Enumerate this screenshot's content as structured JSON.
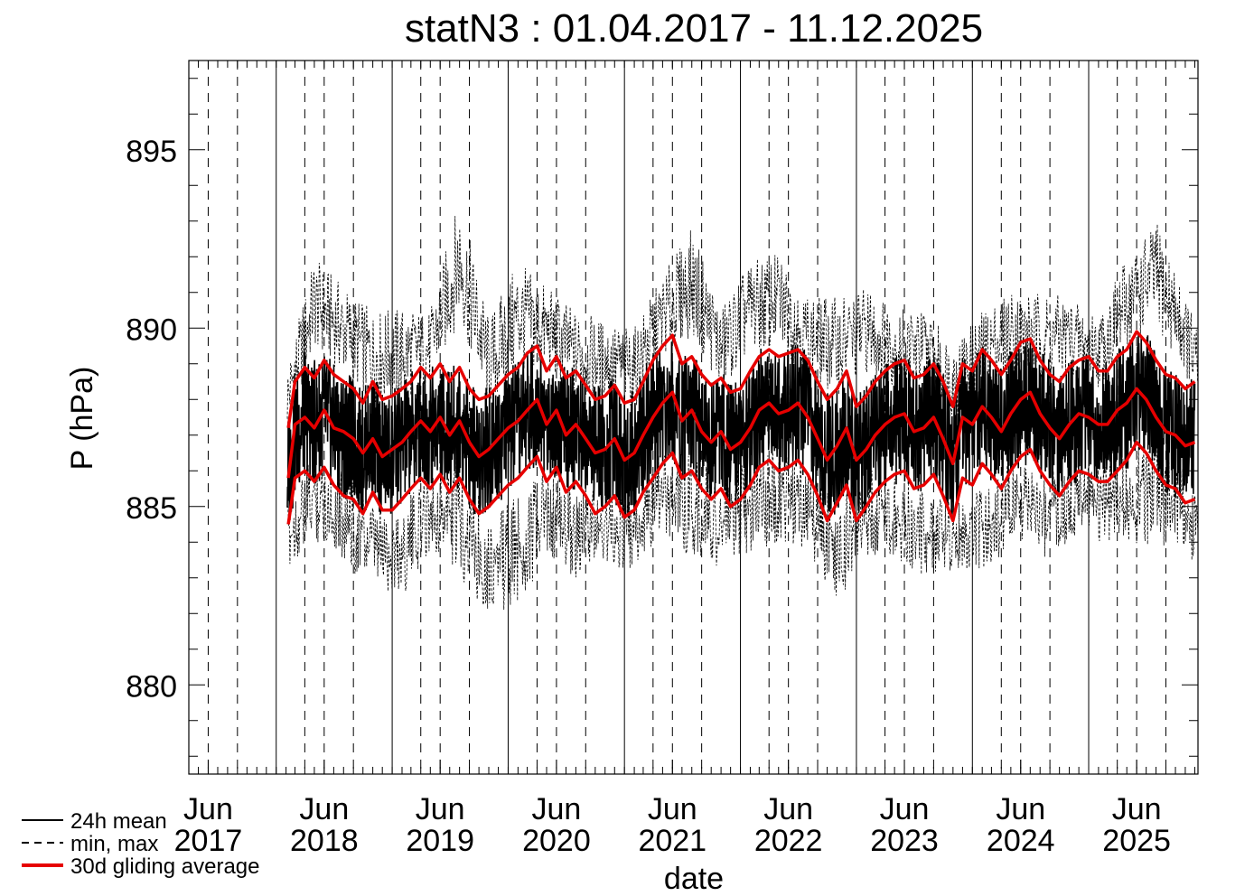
{
  "chart_data": {
    "type": "line",
    "title": "statN3 : 01.04.2017 - 11.12.2025",
    "xlabel": "date",
    "ylabel": "P (hPa)",
    "x_range": [
      "2017-04-01",
      "2025-12-11"
    ],
    "ylim": [
      877.5,
      897.5
    ],
    "yticks": [
      880,
      885,
      890,
      895
    ],
    "ytick_labels": [
      "880",
      "885",
      "890",
      "895"
    ],
    "xticks": [
      {
        "date": "2017-06-01",
        "label": [
          "Jun",
          "2017"
        ]
      },
      {
        "date": "2018-06-01",
        "label": [
          "Jun",
          "2018"
        ]
      },
      {
        "date": "2019-06-01",
        "label": [
          "Jun",
          "2019"
        ]
      },
      {
        "date": "2020-06-01",
        "label": [
          "Jun",
          "2020"
        ]
      },
      {
        "date": "2021-06-01",
        "label": [
          "Jun",
          "2021"
        ]
      },
      {
        "date": "2022-06-01",
        "label": [
          "Jun",
          "2022"
        ]
      },
      {
        "date": "2023-06-01",
        "label": [
          "Jun",
          "2023"
        ]
      },
      {
        "date": "2024-06-01",
        "label": [
          "Jun",
          "2024"
        ]
      },
      {
        "date": "2025-06-01",
        "label": [
          "Jun",
          "2025"
        ]
      }
    ],
    "year_boundaries": [
      "2018-01-01",
      "2019-01-01",
      "2020-01-01",
      "2021-01-01",
      "2022-01-01",
      "2023-01-01",
      "2024-01-01",
      "2025-01-01"
    ],
    "legend_position": "bottom-left",
    "series": [
      {
        "name": "24h mean",
        "style": "solid",
        "color": "#000000",
        "dates": [
          "2018-02-05",
          "2018-03-01",
          "2018-04-01",
          "2018-05-01",
          "2018-06-01",
          "2018-07-01",
          "2018-08-01",
          "2018-09-01",
          "2018-10-01",
          "2018-11-01",
          "2018-12-01",
          "2019-01-01",
          "2019-02-01",
          "2019-03-01",
          "2019-04-01",
          "2019-05-01",
          "2019-06-01",
          "2019-07-01",
          "2019-08-01",
          "2019-09-01",
          "2019-10-01",
          "2019-11-01",
          "2019-12-01",
          "2020-01-01",
          "2020-02-01",
          "2020-03-01",
          "2020-04-01",
          "2020-05-01",
          "2020-06-01",
          "2020-07-01",
          "2020-08-01",
          "2020-09-01",
          "2020-10-01",
          "2020-11-01",
          "2020-12-01",
          "2021-01-01",
          "2021-02-01",
          "2021-03-01",
          "2021-04-01",
          "2021-05-01",
          "2021-06-01",
          "2021-07-01",
          "2021-08-01",
          "2021-09-01",
          "2021-10-01",
          "2021-11-01",
          "2021-12-01",
          "2022-01-01",
          "2022-02-01",
          "2022-03-01",
          "2022-04-01",
          "2022-05-01",
          "2022-06-01",
          "2022-07-01",
          "2022-08-01",
          "2022-09-01",
          "2022-10-01",
          "2022-11-01",
          "2022-12-01",
          "2023-01-01",
          "2023-02-01",
          "2023-03-01",
          "2023-04-01",
          "2023-05-01",
          "2023-06-01",
          "2023-07-01",
          "2023-08-01",
          "2023-09-01",
          "2023-10-01",
          "2023-11-01",
          "2023-12-01",
          "2024-01-01",
          "2024-02-01",
          "2024-03-01",
          "2024-04-01",
          "2024-05-01",
          "2024-06-01",
          "2024-07-01",
          "2024-08-01",
          "2024-09-01",
          "2024-10-01",
          "2024-11-01",
          "2024-12-01",
          "2025-01-01",
          "2025-02-01",
          "2025-03-01",
          "2025-04-01",
          "2025-05-01",
          "2025-06-01",
          "2025-07-01",
          "2025-08-01",
          "2025-09-01",
          "2025-10-01",
          "2025-11-01",
          "2025-12-01"
        ],
        "values": [
          885.8,
          887.0,
          887.6,
          887.3,
          887.6,
          887.2,
          887.0,
          886.8,
          886.5,
          887.0,
          886.4,
          886.5,
          886.8,
          887.0,
          887.3,
          887.2,
          887.4,
          887.1,
          887.3,
          886.8,
          886.4,
          886.7,
          886.9,
          887.1,
          887.3,
          887.7,
          887.9,
          887.3,
          887.6,
          887.1,
          887.2,
          886.9,
          886.6,
          886.6,
          886.9,
          886.4,
          886.5,
          887.1,
          887.5,
          887.8,
          887.9,
          887.4,
          887.6,
          887.2,
          886.9,
          887.1,
          886.7,
          886.8,
          887.2,
          887.7,
          887.8,
          887.6,
          887.7,
          887.8,
          887.5,
          886.9,
          886.4,
          886.6,
          887.1,
          886.4,
          886.6,
          886.9,
          887.2,
          887.4,
          887.5,
          887.2,
          887.2,
          887.5,
          887.0,
          886.3,
          887.4,
          887.3,
          887.7,
          887.5,
          887.2,
          887.6,
          887.9,
          888.0,
          887.6,
          887.3,
          887.0,
          887.3,
          887.5,
          887.6,
          887.3,
          887.3,
          887.6,
          887.8,
          888.2,
          888.1,
          887.6,
          887.2,
          887.0,
          886.8,
          886.8
        ]
      },
      {
        "name": "min, max",
        "style": "dashed",
        "color": "#000000",
        "dates": [
          "2018-02-05",
          "2018-05-01",
          "2018-08-01",
          "2018-11-01",
          "2019-02-01",
          "2019-05-01",
          "2019-08-01",
          "2019-11-01",
          "2020-02-01",
          "2020-05-01",
          "2020-08-01",
          "2020-11-01",
          "2021-02-01",
          "2021-05-01",
          "2021-08-01",
          "2021-11-01",
          "2022-02-01",
          "2022-05-01",
          "2022-08-01",
          "2022-11-01",
          "2023-02-01",
          "2023-05-01",
          "2023-08-01",
          "2023-11-01",
          "2024-02-01",
          "2024-05-01",
          "2024-08-01",
          "2024-11-01",
          "2025-02-01",
          "2025-05-01",
          "2025-08-01",
          "2025-11-01",
          "2025-12-10"
        ],
        "min": [
          883.2,
          884.0,
          883.5,
          882.5,
          882.4,
          883.8,
          883.0,
          882.0,
          882.2,
          883.5,
          883.0,
          883.4,
          883.0,
          884.3,
          883.5,
          883.3,
          883.7,
          884.0,
          883.8,
          882.3,
          883.6,
          883.6,
          883.0,
          883.2,
          883.1,
          883.9,
          883.5,
          884.0,
          884.0,
          884.0,
          883.9,
          883.9,
          883.0
        ],
        "max": [
          889.0,
          892.0,
          891.2,
          890.5,
          890.6,
          890.5,
          893.7,
          890.3,
          891.9,
          891.2,
          890.5,
          890.2,
          890.0,
          891.5,
          892.8,
          890.6,
          891.9,
          892.1,
          890.9,
          890.9,
          891.2,
          890.6,
          890.6,
          889.6,
          890.5,
          891.1,
          891.0,
          890.9,
          890.4,
          892.0,
          893.0,
          891.0,
          890.0
        ]
      },
      {
        "name": "30d gliding average",
        "style": "solid-thick",
        "color": "#e60000",
        "dates": [
          "2018-02-08",
          "2018-03-01",
          "2018-04-01",
          "2018-05-01",
          "2018-06-01",
          "2018-07-01",
          "2018-08-01",
          "2018-09-01",
          "2018-10-01",
          "2018-11-01",
          "2018-12-01",
          "2019-01-01",
          "2019-02-01",
          "2019-03-01",
          "2019-04-01",
          "2019-05-01",
          "2019-06-01",
          "2019-07-01",
          "2019-08-01",
          "2019-09-01",
          "2019-10-01",
          "2019-11-01",
          "2019-12-01",
          "2020-01-01",
          "2020-02-01",
          "2020-03-01",
          "2020-04-01",
          "2020-05-01",
          "2020-06-01",
          "2020-07-01",
          "2020-08-01",
          "2020-09-01",
          "2020-10-01",
          "2020-11-01",
          "2020-12-01",
          "2021-01-01",
          "2021-02-01",
          "2021-03-01",
          "2021-04-01",
          "2021-05-01",
          "2021-06-01",
          "2021-07-01",
          "2021-08-01",
          "2021-09-01",
          "2021-10-01",
          "2021-11-01",
          "2021-12-01",
          "2022-01-01",
          "2022-02-01",
          "2022-03-01",
          "2022-04-01",
          "2022-05-01",
          "2022-06-01",
          "2022-07-01",
          "2022-08-01",
          "2022-09-01",
          "2022-10-01",
          "2022-11-01",
          "2022-12-01",
          "2023-01-01",
          "2023-02-01",
          "2023-03-01",
          "2023-04-01",
          "2023-05-01",
          "2023-06-01",
          "2023-07-01",
          "2023-08-01",
          "2023-09-01",
          "2023-10-01",
          "2023-11-01",
          "2023-12-01",
          "2024-01-01",
          "2024-02-01",
          "2024-03-01",
          "2024-04-01",
          "2024-05-01",
          "2024-06-01",
          "2024-07-01",
          "2024-08-01",
          "2024-09-01",
          "2024-10-01",
          "2024-11-01",
          "2024-12-01",
          "2025-01-01",
          "2025-02-01",
          "2025-03-01",
          "2025-04-01",
          "2025-05-01",
          "2025-06-01",
          "2025-07-01",
          "2025-08-01",
          "2025-09-01",
          "2025-10-01",
          "2025-11-01",
          "2025-12-01"
        ],
        "mean": [
          885.8,
          887.3,
          887.5,
          887.2,
          887.7,
          887.2,
          887.1,
          886.9,
          886.5,
          886.9,
          886.4,
          886.6,
          886.8,
          887.1,
          887.4,
          887.1,
          887.5,
          887.0,
          887.4,
          886.8,
          886.4,
          886.6,
          886.9,
          887.2,
          887.4,
          887.7,
          888.0,
          887.3,
          887.7,
          887.0,
          887.3,
          886.9,
          886.5,
          886.6,
          886.9,
          886.3,
          886.5,
          887.0,
          887.5,
          887.9,
          888.2,
          887.4,
          887.7,
          887.1,
          886.8,
          887.1,
          886.6,
          886.8,
          887.2,
          887.7,
          887.9,
          887.6,
          887.7,
          887.9,
          887.5,
          886.9,
          886.3,
          886.7,
          887.2,
          886.3,
          886.6,
          887.0,
          887.3,
          887.5,
          887.6,
          887.1,
          887.2,
          887.5,
          886.9,
          886.2,
          887.5,
          887.3,
          887.8,
          887.5,
          887.1,
          887.6,
          888.0,
          888.2,
          887.6,
          887.2,
          886.9,
          887.3,
          887.6,
          887.5,
          887.3,
          887.3,
          887.7,
          887.9,
          888.3,
          888.0,
          887.5,
          887.1,
          887.0,
          886.7,
          886.8
        ],
        "upper": [
          887.2,
          888.5,
          888.9,
          888.6,
          889.1,
          888.7,
          888.5,
          888.3,
          887.9,
          888.5,
          888.0,
          888.1,
          888.3,
          888.5,
          888.9,
          888.6,
          889.0,
          888.5,
          888.9,
          888.3,
          888.0,
          888.1,
          888.4,
          888.7,
          888.9,
          889.3,
          889.5,
          888.8,
          889.2,
          888.6,
          888.8,
          888.4,
          888.0,
          888.1,
          888.4,
          887.9,
          888.0,
          888.5,
          889.1,
          889.5,
          889.8,
          889.0,
          889.2,
          888.7,
          888.4,
          888.6,
          888.2,
          888.3,
          888.8,
          889.2,
          889.4,
          889.2,
          889.3,
          889.4,
          889.1,
          888.5,
          888.0,
          888.3,
          888.8,
          887.8,
          888.1,
          888.5,
          888.8,
          889.0,
          889.1,
          888.6,
          888.7,
          889.0,
          888.5,
          887.8,
          889.0,
          888.8,
          889.4,
          889.1,
          888.7,
          889.1,
          889.6,
          889.7,
          889.1,
          888.7,
          888.5,
          888.9,
          889.1,
          889.2,
          888.8,
          888.8,
          889.2,
          889.4,
          889.9,
          889.6,
          889.1,
          888.7,
          888.6,
          888.3,
          888.5
        ],
        "lower": [
          884.5,
          885.8,
          886.0,
          885.7,
          886.1,
          885.6,
          885.3,
          885.2,
          884.8,
          885.4,
          884.9,
          884.9,
          885.2,
          885.5,
          885.8,
          885.5,
          885.9,
          885.4,
          885.8,
          885.2,
          884.8,
          885.0,
          885.3,
          885.6,
          885.8,
          886.1,
          886.4,
          885.7,
          886.1,
          885.4,
          885.7,
          885.3,
          884.8,
          885.0,
          885.3,
          884.7,
          884.9,
          885.4,
          885.8,
          886.2,
          886.5,
          885.8,
          886.0,
          885.5,
          885.2,
          885.5,
          885.0,
          885.2,
          885.6,
          886.1,
          886.3,
          886.0,
          886.1,
          886.3,
          885.9,
          885.3,
          884.6,
          885.1,
          885.6,
          884.6,
          885.0,
          885.4,
          885.7,
          885.9,
          886.0,
          885.5,
          885.6,
          885.9,
          885.3,
          884.6,
          885.8,
          885.6,
          886.2,
          885.9,
          885.5,
          886.0,
          886.4,
          886.6,
          886.0,
          885.6,
          885.3,
          885.7,
          886.0,
          885.9,
          885.7,
          885.7,
          886.0,
          886.3,
          886.8,
          886.5,
          886.0,
          885.6,
          885.5,
          885.1,
          885.2
        ]
      }
    ]
  }
}
